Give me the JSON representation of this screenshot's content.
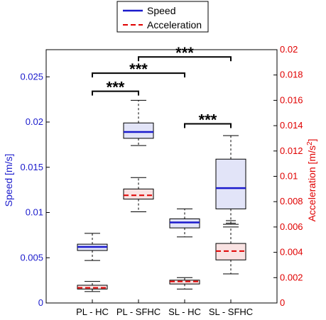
{
  "chart_data": {
    "type": "box",
    "categories": [
      "PL - HC",
      "PL - SFHC",
      "SL - HC",
      "SL - SFHC"
    ],
    "left_axis": {
      "label": "Speed [m/s]",
      "ylim": [
        0,
        0.028
      ],
      "ticks": [
        0,
        0.005,
        0.01,
        0.015,
        0.02,
        0.025
      ],
      "tick_labels": [
        "0",
        "0.005",
        "0.01",
        "0.015",
        "0.02",
        "0.025"
      ],
      "color": "#1a1acc"
    },
    "right_axis": {
      "label_main": "Acceleration [m/s",
      "label_sup": "2",
      "label_end": "]",
      "ylim": [
        0,
        0.02
      ],
      "ticks": [
        0,
        0.002,
        0.004,
        0.006,
        0.008,
        0.01,
        0.012,
        0.014,
        0.016,
        0.018,
        0.02
      ],
      "tick_labels": [
        "0",
        "0.002",
        "0.004",
        "0.006",
        "0.008",
        "0.01",
        "0.012",
        "0.014",
        "0.016",
        "0.018",
        "0.02"
      ],
      "color": "#e00000"
    },
    "series": [
      {
        "name": "Speed",
        "axis": "left",
        "color": "#1a1acc",
        "fill": "#e2e4f8",
        "line_style": "solid",
        "boxes": [
          {
            "whisker_low": 0.0047,
            "q1": 0.0058,
            "median": 0.0062,
            "q3": 0.0065,
            "whisker_high": 0.0077,
            "outliers": []
          },
          {
            "whisker_low": 0.0174,
            "q1": 0.0182,
            "median": 0.0189,
            "q3": 0.0199,
            "whisker_high": 0.0224,
            "outliers": []
          },
          {
            "whisker_low": 0.0073,
            "q1": 0.0083,
            "median": 0.0089,
            "q3": 0.0093,
            "whisker_high": 0.0104,
            "outliers": []
          },
          {
            "whisker_low": 0.0087,
            "q1": 0.0104,
            "median": 0.0127,
            "q3": 0.0159,
            "whisker_high": 0.0185,
            "outliers": []
          }
        ]
      },
      {
        "name": "Acceleration",
        "axis": "right",
        "color": "#e00000",
        "fill": "#f9e2e2",
        "line_style": "dashed",
        "boxes": [
          {
            "whisker_low": 0.0009,
            "q1": 0.0011,
            "median": 0.0012,
            "q3": 0.0014,
            "whisker_high": 0.0017,
            "outliers": []
          },
          {
            "whisker_low": 0.0072,
            "q1": 0.0082,
            "median": 0.0085,
            "q3": 0.009,
            "whisker_high": 0.0099,
            "outliers": []
          },
          {
            "whisker_low": 0.0011,
            "q1": 0.0015,
            "median": 0.0017,
            "q3": 0.0018,
            "whisker_high": 0.002,
            "outliers": []
          },
          {
            "whisker_low": 0.0023,
            "q1": 0.0034,
            "median": 0.0041,
            "q3": 0.0047,
            "whisker_high": 0.006,
            "outliers": [
              0.0063,
              0.0065
            ]
          }
        ]
      }
    ],
    "significance": [
      {
        "from": 0,
        "to": 1,
        "y": 0.0234,
        "label": "***"
      },
      {
        "from": 0,
        "to": 2,
        "y": 0.0254,
        "label": "***"
      },
      {
        "from": 1,
        "to": 3,
        "y": 0.0272,
        "label": "***"
      },
      {
        "from": 2,
        "to": 3,
        "y": 0.0198,
        "label": "***"
      }
    ],
    "legend": {
      "placement": "top-center",
      "entries": [
        "Speed",
        "Acceleration"
      ]
    }
  }
}
